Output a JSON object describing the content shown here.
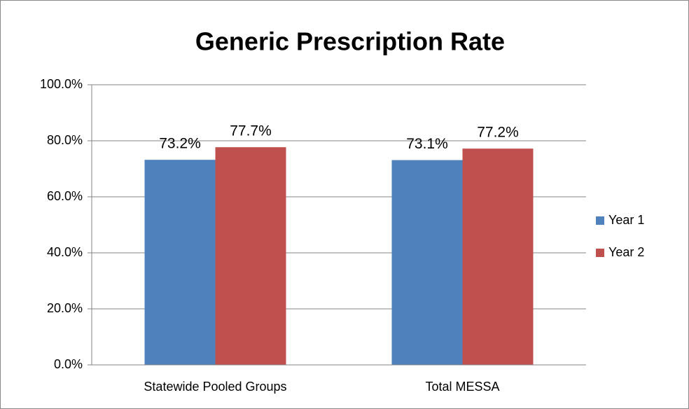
{
  "chart_data": {
    "type": "bar",
    "title": "Generic Prescription Rate",
    "categories": [
      "Statewide Pooled Groups",
      "Total MESSA"
    ],
    "series": [
      {
        "name": "Year 1",
        "color": "#4f81bd",
        "values": [
          73.2,
          73.1
        ],
        "value_labels": [
          "73.2%",
          "73.1%"
        ]
      },
      {
        "name": "Year 2",
        "color": "#c0504d",
        "values": [
          77.7,
          77.2
        ],
        "value_labels": [
          "77.7%",
          "77.2%"
        ]
      }
    ],
    "ylim": [
      0,
      100
    ],
    "yticks": [
      {
        "value": 0,
        "label": "0.0%"
      },
      {
        "value": 20,
        "label": "20.0%"
      },
      {
        "value": 40,
        "label": "40.0%"
      },
      {
        "value": 60,
        "label": "60.0%"
      },
      {
        "value": 80,
        "label": "80.0%"
      },
      {
        "value": 100,
        "label": "100.0%"
      }
    ],
    "grid": true,
    "legend": "right"
  }
}
